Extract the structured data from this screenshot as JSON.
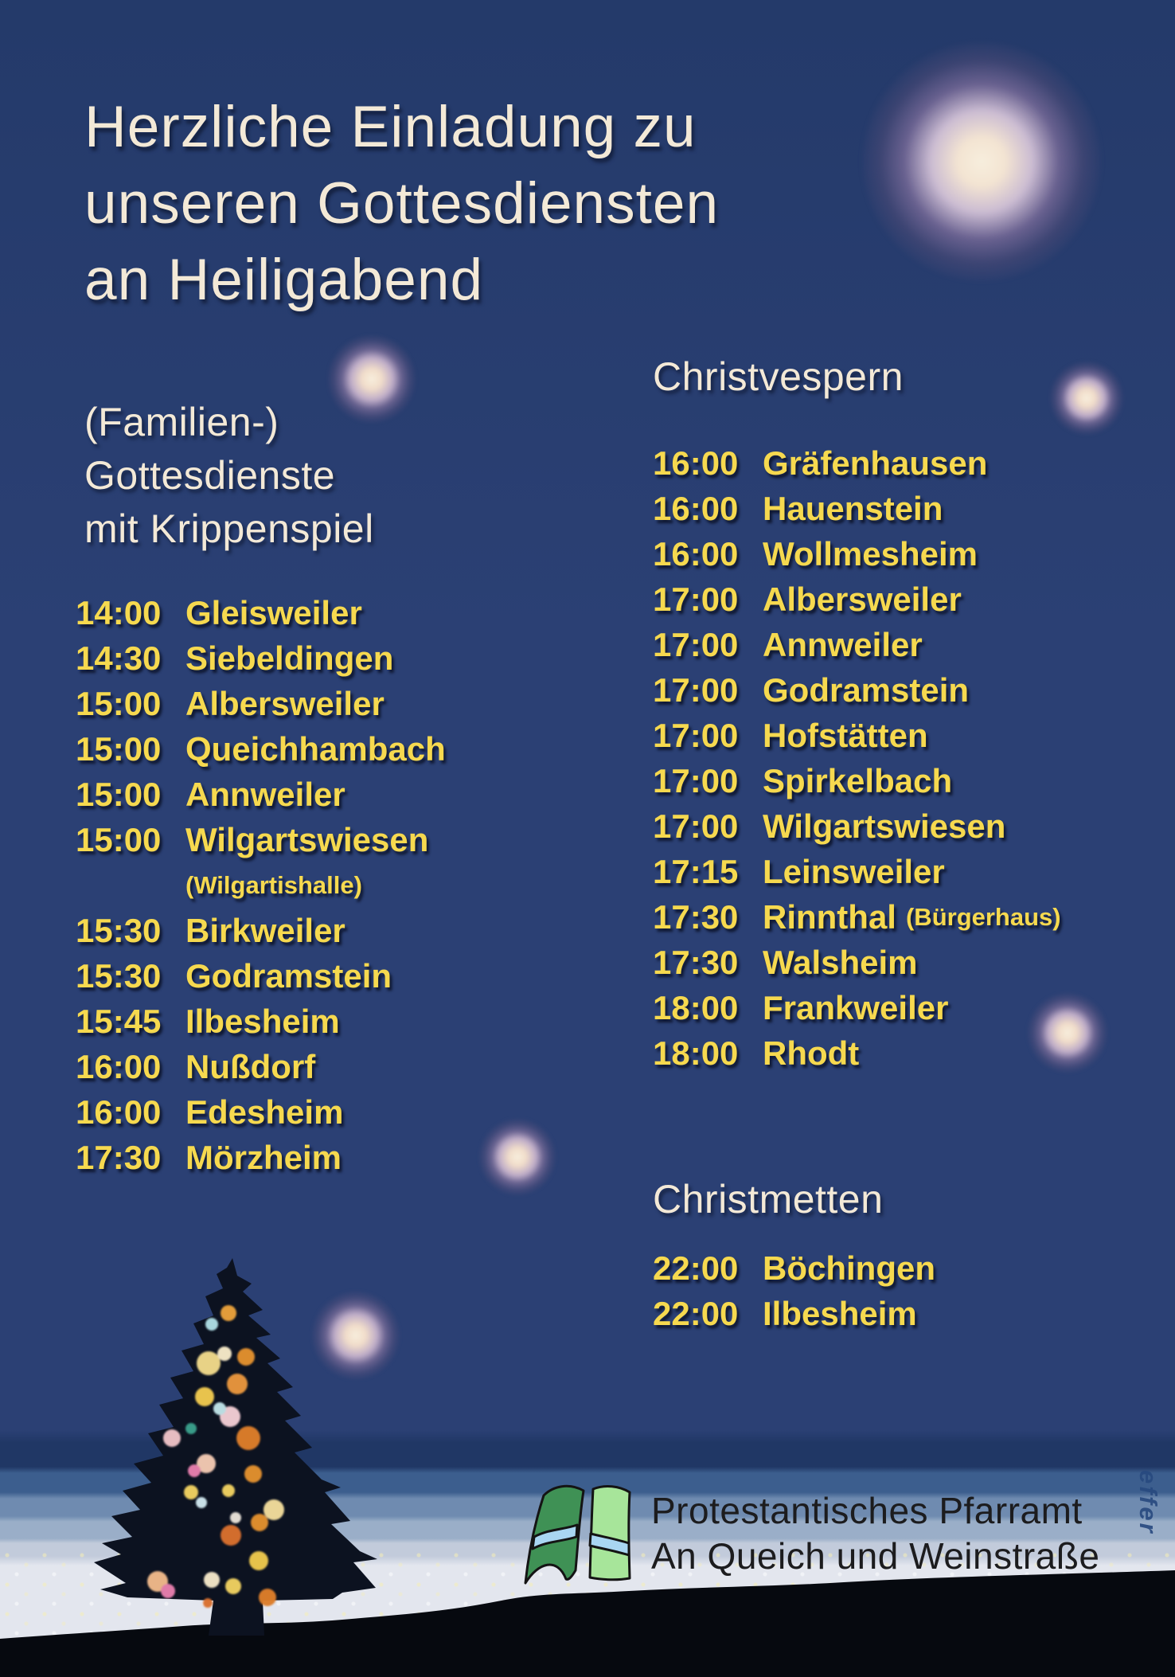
{
  "poster": {
    "title_lines": [
      "Herzliche Einladung zu",
      "unseren Gottesdiensten",
      "an Heiligabend"
    ],
    "family_services": {
      "heading_lines": [
        "(Familien-)",
        "Gottesdienste",
        "mit Krippenspiel"
      ],
      "entries": [
        {
          "time": "14:00",
          "place": "Gleisweiler"
        },
        {
          "time": "14:30",
          "place": "Siebeldingen"
        },
        {
          "time": "15:00",
          "place": "Albersweiler"
        },
        {
          "time": "15:00",
          "place": "Queichhambach"
        },
        {
          "time": "15:00",
          "place": "Annweiler"
        },
        {
          "time": "15:00",
          "place": "Wilgartswiesen"
        },
        {
          "time": "",
          "place": "(Wilgartishalle)"
        },
        {
          "time": "15:30",
          "place": "Birkweiler"
        },
        {
          "time": "15:30",
          "place": "Godramstein"
        },
        {
          "time": "15:45",
          "place": "Ilbesheim"
        },
        {
          "time": "16:00",
          "place": "Nußdorf"
        },
        {
          "time": "16:00",
          "place": "Edesheim"
        },
        {
          "time": "17:30",
          "place": "Mörzheim"
        }
      ]
    },
    "christvespern": {
      "heading": "Christvespern",
      "entries": [
        {
          "time": "16:00",
          "place": "Gräfenhausen"
        },
        {
          "time": "16:00",
          "place": "Hauenstein"
        },
        {
          "time": "16:00",
          "place": "Wollmesheim"
        },
        {
          "time": "17:00",
          "place": "Albersweiler"
        },
        {
          "time": "17:00",
          "place": "Annweiler"
        },
        {
          "time": "17:00",
          "place": "Godramstein"
        },
        {
          "time": "17:00",
          "place": "Hofstätten"
        },
        {
          "time": "17:00",
          "place": "Spirkelbach"
        },
        {
          "time": "17:00",
          "place": "Wilgartswiesen"
        },
        {
          "time": "17:15",
          "place": "Leinsweiler"
        },
        {
          "time": "17:30",
          "place": "Rinnthal",
          "note": "(Bürgerhaus)"
        },
        {
          "time": "17:30",
          "place": "Walsheim"
        },
        {
          "time": "18:00",
          "place": "Frankweiler"
        },
        {
          "time": "18:00",
          "place": "Rhodt"
        }
      ]
    },
    "christmetten": {
      "heading": "Christmetten",
      "entries": [
        {
          "time": "22:00",
          "place": "Böchingen"
        },
        {
          "time": "22:00",
          "place": "Ilbesheim"
        }
      ]
    },
    "footer": {
      "org_lines": [
        "Protestantisches Pfarramt",
        "An Queich und Weinstraße"
      ]
    },
    "watermark": "effer"
  },
  "colors": {
    "bg": "#2b4074",
    "bg_top": "#243a6a",
    "cream": "#f3e9d7",
    "yellow": "#f6d94f",
    "snow": "#e3e6ee",
    "ink": "#1c1c1e",
    "watermark_blue": "#27497f",
    "logo_dark_green": "#3f9155",
    "logo_light_green": "#a7e59a",
    "river_blue": "#a9d6f2",
    "tree": "#0c1220",
    "ground": "#06090f",
    "star_core": "#f7eedd",
    "star_halo": "#8a7da8"
  }
}
